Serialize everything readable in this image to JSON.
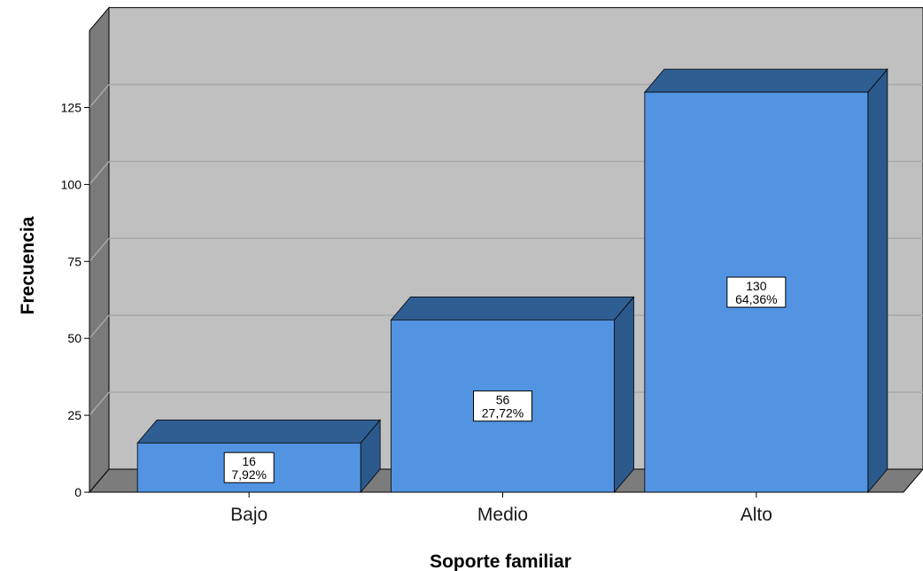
{
  "chart_data": {
    "type": "bar",
    "categories": [
      "Bajo",
      "Medio",
      "Alto"
    ],
    "values": [
      16,
      56,
      130
    ],
    "percent_labels": [
      "7,92%",
      "27,72%",
      "64,36%"
    ],
    "xlabel": "Soporte familiar",
    "ylabel": "Frecuencia",
    "ylim": [
      0,
      150
    ],
    "yticks": [
      "0",
      "25",
      "50",
      "75",
      "100",
      "125"
    ],
    "grid": true,
    "colors": {
      "bar_front": "#5294E2",
      "bar_top": "#2F5E92",
      "bar_side": "#2C598C",
      "wall_back": "#C0C0C0",
      "wall_left": "#7A7A7A",
      "floor": "#7C7C7C"
    }
  }
}
